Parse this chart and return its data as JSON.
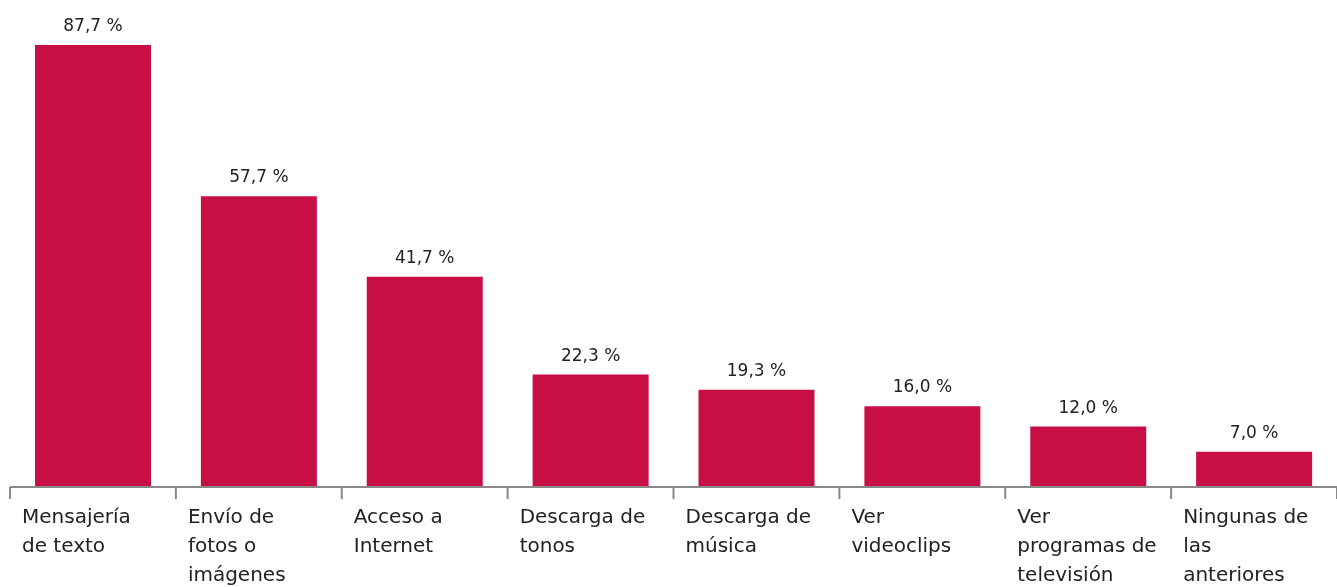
{
  "chart_data": {
    "type": "bar",
    "categories": [
      "Mensajería de texto",
      "Envío de fotos o imágenes",
      "Acceso a Internet",
      "Descarga de tonos",
      "Descarga de música",
      "Ver videoclips",
      "Ver programas de televisión",
      "Ningunas de las anteriores"
    ],
    "values": [
      87.7,
      57.7,
      41.7,
      22.3,
      19.3,
      16.0,
      12.0,
      7.0
    ],
    "value_labels": [
      "87,7 %",
      "57,7 %",
      "41,7 %",
      "22,3 %",
      "19,3 %",
      "16,0 %",
      "12,0 %",
      "7,0 %"
    ],
    "color": "#c70f46",
    "grid": false,
    "legend": false
  }
}
